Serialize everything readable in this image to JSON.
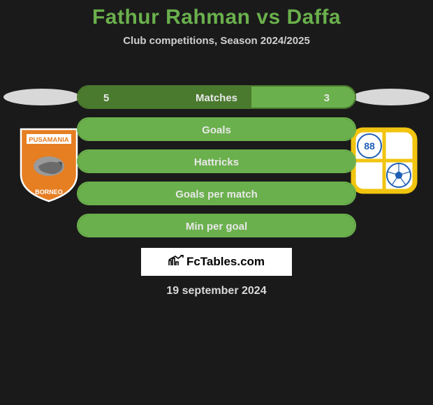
{
  "title": "Fathur Rahman vs Daffa",
  "subtitle": "Club competitions, Season 2024/2025",
  "footer_logo": "FcTables.com",
  "footer_date": "19 september 2024",
  "colors": {
    "background": "#1a1a1a",
    "title": "#6ab04c",
    "ellipse": "#d8d8d8",
    "bar_text": "#e8e8e8"
  },
  "left_club": {
    "name": "Pusamania Borneo",
    "colors": {
      "primary": "#e67e22",
      "secondary": "#ffffff"
    }
  },
  "right_club": {
    "name": "Barito Putera 88",
    "colors": {
      "primary": "#f1c40f",
      "secondary": "#ffffff",
      "accent": "#1e5fb5"
    }
  },
  "stats": [
    {
      "label": "Matches",
      "left_value": "5",
      "right_value": "3",
      "left_pct": 62.5,
      "right_pct": 37.5,
      "left_color": "#4a7a2e",
      "right_color": "#6ab04c",
      "show_values": true
    },
    {
      "label": "Goals",
      "left_value": "",
      "right_value": "",
      "left_pct": 100,
      "right_pct": 0,
      "left_color": "#6ab04c",
      "right_color": "#6ab04c",
      "show_values": false
    },
    {
      "label": "Hattricks",
      "left_value": "",
      "right_value": "",
      "left_pct": 100,
      "right_pct": 0,
      "left_color": "#6ab04c",
      "right_color": "#6ab04c",
      "show_values": false
    },
    {
      "label": "Goals per match",
      "left_value": "",
      "right_value": "",
      "left_pct": 100,
      "right_pct": 0,
      "left_color": "#6ab04c",
      "right_color": "#6ab04c",
      "show_values": false
    },
    {
      "label": "Min per goal",
      "left_value": "",
      "right_value": "",
      "left_pct": 100,
      "right_pct": 0,
      "left_color": "#6ab04c",
      "right_color": "#6ab04c",
      "show_values": false
    }
  ]
}
